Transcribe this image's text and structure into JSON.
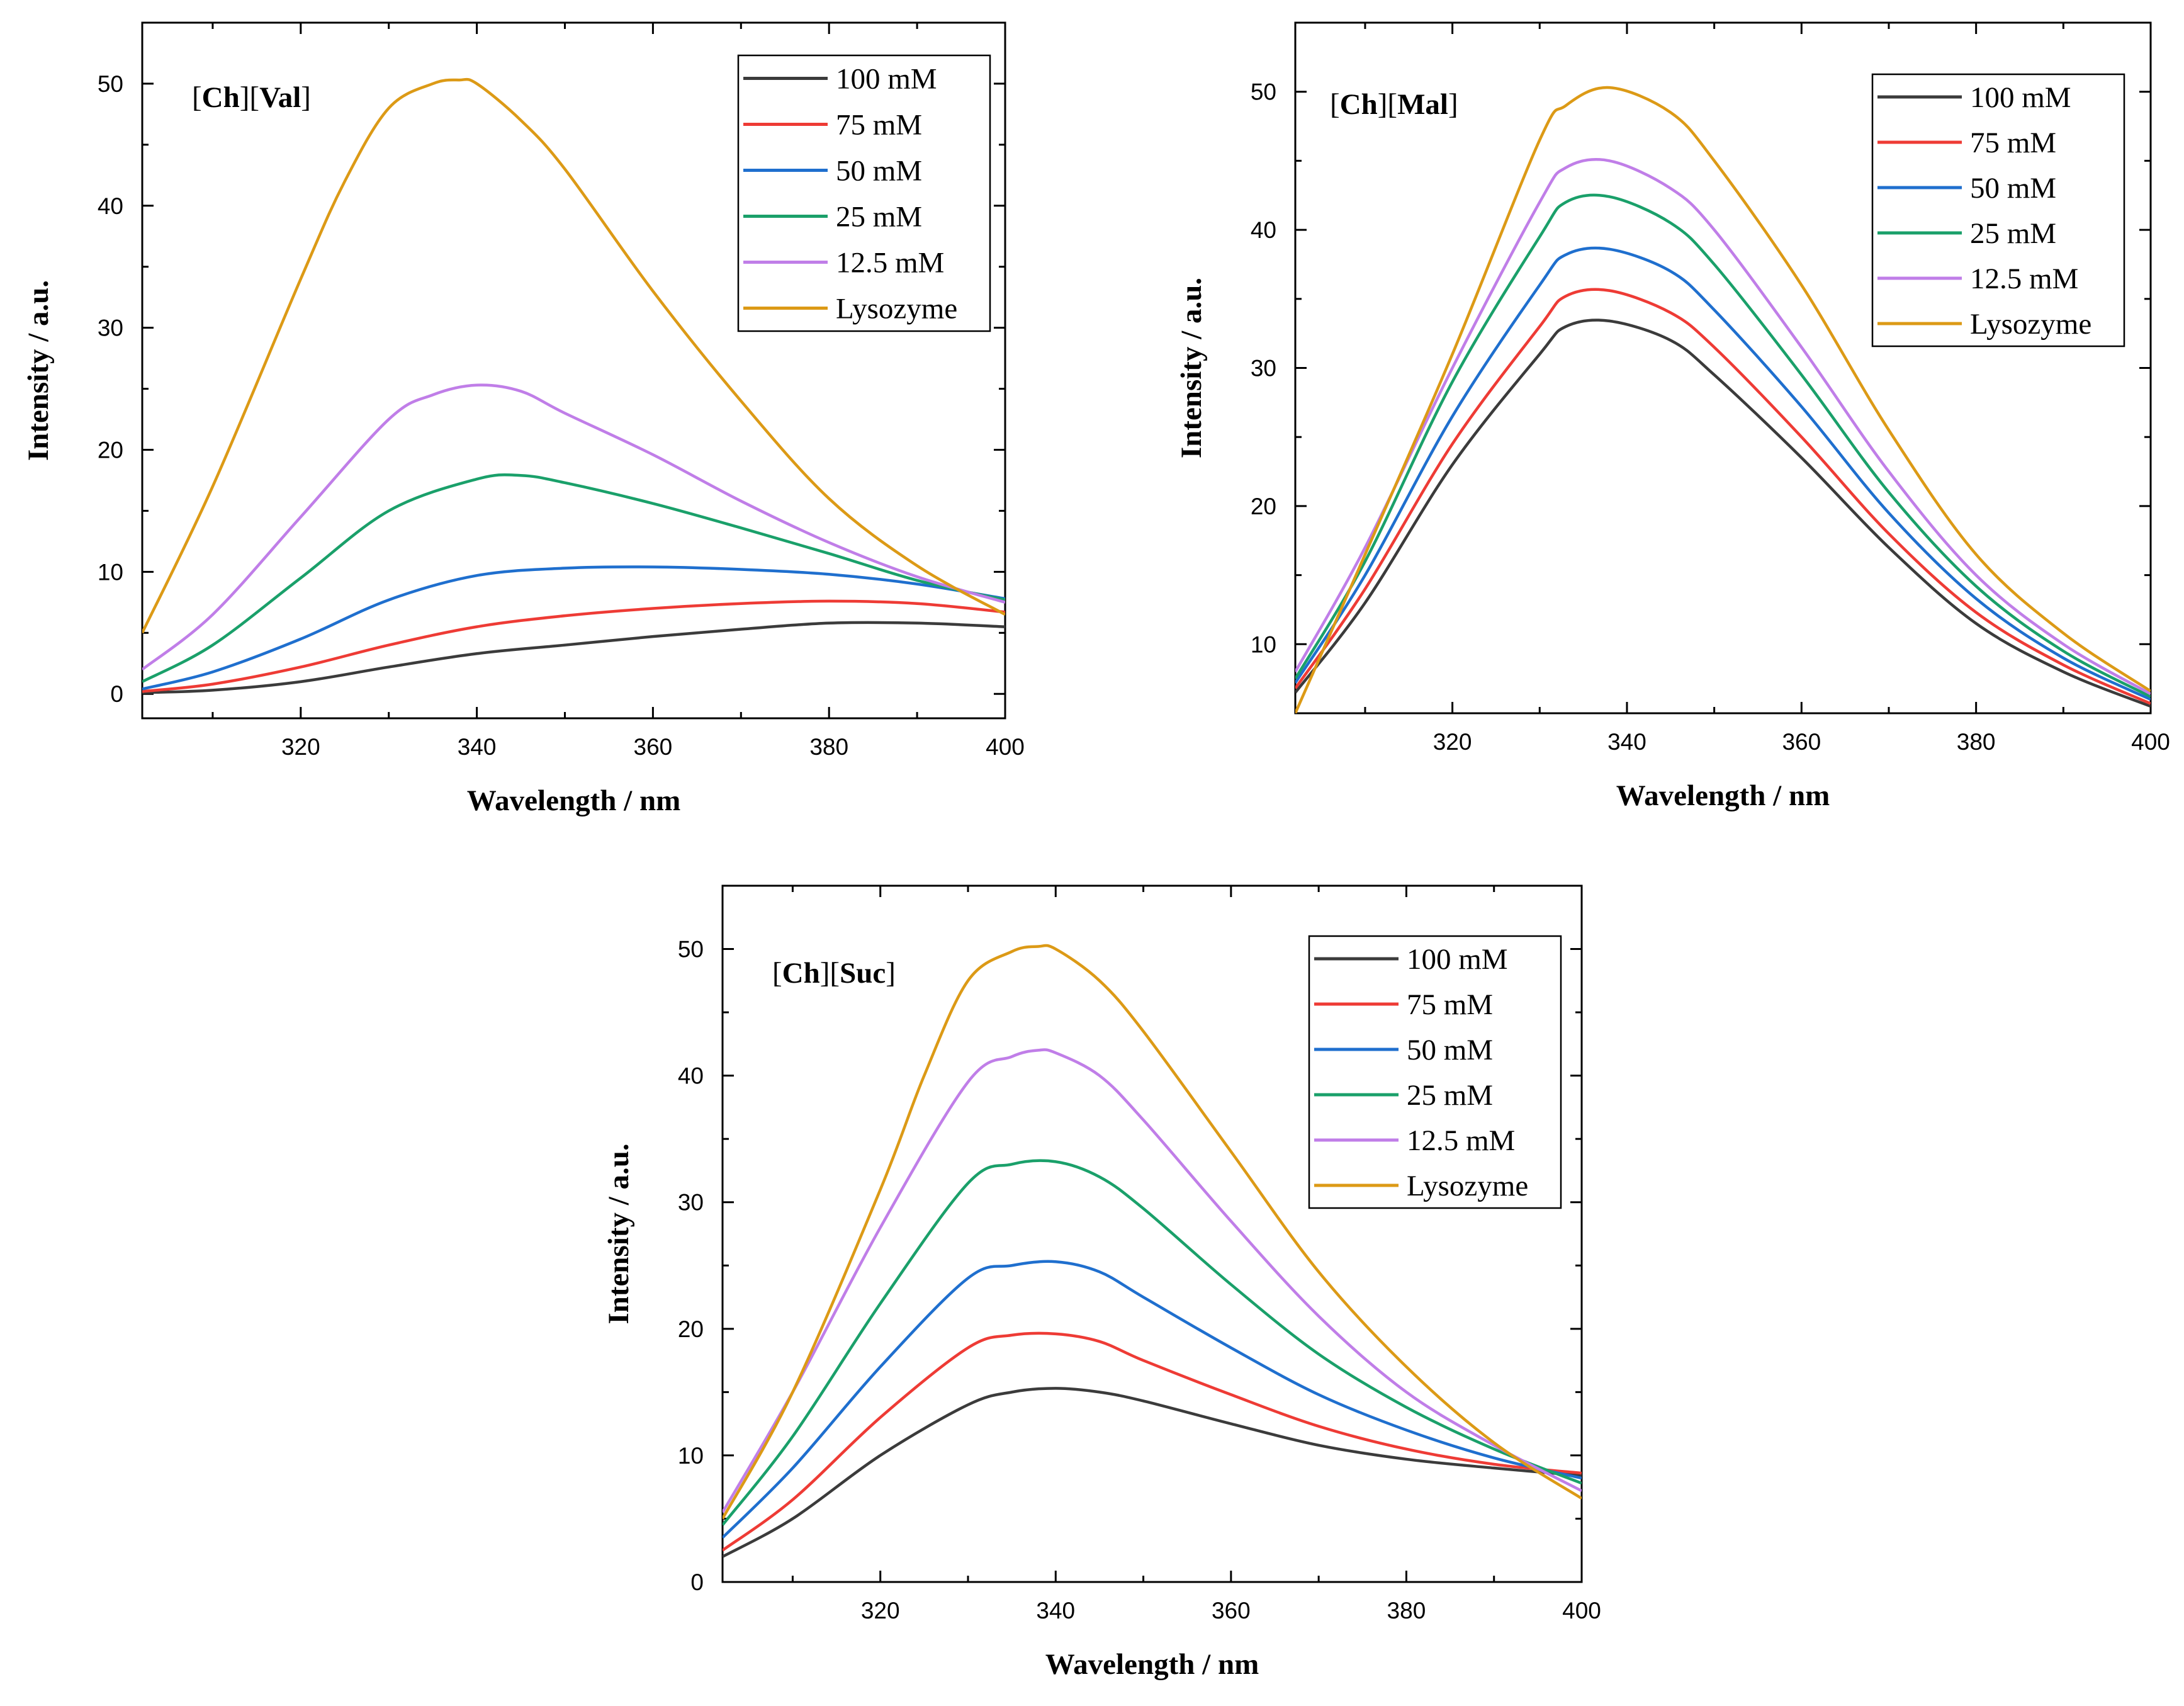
{
  "series_colors": {
    "100 mM": "#3b3b3b",
    "75 mM": "#ee3b35",
    "50 mM": "#1f6fce",
    "25 mM": "#1aa06a",
    "12.5 mM": "#c07ee8",
    "Lysozyme": "#dc9a16"
  },
  "chart_data": [
    {
      "type": "line",
      "title": "[Ch][Val]",
      "title_parts": [
        {
          "text": "[",
          "bold": false
        },
        {
          "text": "Ch",
          "bold": true
        },
        {
          "text": "][",
          "bold": false
        },
        {
          "text": "Val",
          "bold": true
        },
        {
          "text": "]",
          "bold": false
        }
      ],
      "xlabel": "Wavelength / nm",
      "ylabel": "Intensity / a.u.",
      "xlim": [
        302,
        400
      ],
      "ylim": [
        -2,
        55
      ],
      "xticks": [
        320,
        340,
        360,
        380,
        400
      ],
      "yticks": [
        0,
        10,
        20,
        30,
        40,
        50
      ],
      "legend_position": "top-right",
      "series": [
        {
          "name": "100 mM",
          "x": [
            302,
            310,
            320,
            330,
            340,
            350,
            360,
            370,
            380,
            390,
            400
          ],
          "y": [
            0.1,
            0.3,
            1.0,
            2.2,
            3.3,
            4.0,
            4.7,
            5.3,
            5.8,
            5.8,
            5.5
          ]
        },
        {
          "name": "75 mM",
          "x": [
            302,
            310,
            320,
            330,
            340,
            350,
            360,
            370,
            380,
            390,
            400
          ],
          "y": [
            0.2,
            0.8,
            2.2,
            4.0,
            5.5,
            6.4,
            7.0,
            7.4,
            7.6,
            7.4,
            6.7
          ]
        },
        {
          "name": "50 mM",
          "x": [
            302,
            310,
            320,
            330,
            340,
            350,
            360,
            370,
            380,
            390,
            400
          ],
          "y": [
            0.4,
            1.8,
            4.5,
            7.7,
            9.7,
            10.3,
            10.4,
            10.2,
            9.8,
            9.0,
            7.8
          ]
        },
        {
          "name": "25 mM",
          "x": [
            302,
            310,
            320,
            330,
            340,
            345,
            350,
            360,
            370,
            380,
            390,
            400
          ],
          "y": [
            1.0,
            4.0,
            9.5,
            15.0,
            17.6,
            17.9,
            17.3,
            15.6,
            13.6,
            11.5,
            9.3,
            7.7
          ]
        },
        {
          "name": "12.5 mM",
          "x": [
            302,
            310,
            320,
            330,
            335,
            340,
            345,
            350,
            360,
            370,
            380,
            390,
            400
          ],
          "y": [
            2.0,
            6.5,
            14.5,
            22.5,
            24.5,
            25.3,
            24.8,
            23.0,
            19.6,
            15.8,
            12.4,
            9.6,
            7.5
          ]
        },
        {
          "name": "Lysozyme",
          "x": [
            302,
            310,
            320,
            325,
            330,
            335,
            338,
            340,
            345,
            350,
            360,
            370,
            380,
            390,
            400
          ],
          "y": [
            5.0,
            17.0,
            34.0,
            42.0,
            48.0,
            50.0,
            50.3,
            50.0,
            47.0,
            43.0,
            33.0,
            24.0,
            16.0,
            10.5,
            6.5
          ]
        }
      ]
    },
    {
      "type": "line",
      "title": "[Ch][Mal]",
      "title_parts": [
        {
          "text": "[",
          "bold": false
        },
        {
          "text": "Ch",
          "bold": true
        },
        {
          "text": "][",
          "bold": false
        },
        {
          "text": "Mal",
          "bold": true
        },
        {
          "text": "]",
          "bold": false
        }
      ],
      "xlabel": "Wavelength / nm",
      "ylabel": "Intensity / a.u.",
      "xlim": [
        302,
        400
      ],
      "ylim": [
        5,
        55
      ],
      "xticks": [
        320,
        340,
        360,
        380,
        400
      ],
      "yticks": [
        10,
        20,
        30,
        40,
        50
      ],
      "legend_position": "top-right",
      "series": [
        {
          "name": "100 mM",
          "x": [
            302,
            310,
            320,
            330,
            333,
            338,
            345,
            350,
            360,
            370,
            380,
            390,
            400
          ],
          "y": [
            6.5,
            13.0,
            23.0,
            31.0,
            33.0,
            33.4,
            32.0,
            29.5,
            23.5,
            17.0,
            11.5,
            8.0,
            5.5
          ]
        },
        {
          "name": "75 mM",
          "x": [
            302,
            310,
            320,
            330,
            333,
            338,
            345,
            350,
            360,
            370,
            380,
            390,
            400
          ],
          "y": [
            6.8,
            14.0,
            24.5,
            33.0,
            35.2,
            35.6,
            34.0,
            31.5,
            25.0,
            18.0,
            12.3,
            8.5,
            5.7
          ]
        },
        {
          "name": "50 mM",
          "x": [
            302,
            310,
            320,
            330,
            333,
            338,
            345,
            350,
            360,
            370,
            380,
            390,
            400
          ],
          "y": [
            7.2,
            15.0,
            26.5,
            36.0,
            38.2,
            38.6,
            37.0,
            34.2,
            27.2,
            19.5,
            13.3,
            9.0,
            6.0
          ]
        },
        {
          "name": "25 mM",
          "x": [
            302,
            310,
            320,
            330,
            333,
            338,
            345,
            350,
            360,
            370,
            380,
            390,
            400
          ],
          "y": [
            7.5,
            16.0,
            29.0,
            39.5,
            42.0,
            42.4,
            40.5,
            37.5,
            29.5,
            21.0,
            14.2,
            9.5,
            6.2
          ]
        },
        {
          "name": "12.5 mM",
          "x": [
            302,
            310,
            320,
            330,
            333,
            338,
            345,
            350,
            360,
            370,
            380,
            390,
            400
          ],
          "y": [
            8.0,
            17.0,
            30.0,
            42.0,
            44.5,
            45.0,
            43.0,
            40.0,
            31.5,
            22.5,
            15.0,
            10.0,
            6.4
          ]
        },
        {
          "name": "Lysozyme",
          "x": [
            302,
            310,
            320,
            330,
            333,
            338,
            345,
            350,
            360,
            370,
            380,
            390,
            400
          ],
          "y": [
            5.0,
            16.5,
            31.0,
            46.5,
            49.0,
            50.3,
            48.5,
            45.0,
            36.0,
            25.5,
            16.5,
            10.8,
            6.6
          ]
        }
      ]
    },
    {
      "type": "line",
      "title": "[Ch][Suc]",
      "title_parts": [
        {
          "text": "[",
          "bold": false
        },
        {
          "text": "Ch",
          "bold": true
        },
        {
          "text": "][",
          "bold": false
        },
        {
          "text": "Suc",
          "bold": true
        },
        {
          "text": "]",
          "bold": false
        }
      ],
      "xlabel": "Wavelength / nm",
      "ylabel": "Intensity / a.u.",
      "xlim": [
        302,
        400
      ],
      "ylim": [
        0,
        55
      ],
      "xticks": [
        320,
        340,
        360,
        380,
        400
      ],
      "yticks": [
        0,
        10,
        20,
        30,
        40,
        50
      ],
      "legend_position": "top-right",
      "series": [
        {
          "name": "100 mM",
          "x": [
            302,
            310,
            320,
            330,
            335,
            340,
            345,
            350,
            360,
            370,
            380,
            390,
            400
          ],
          "y": [
            2.0,
            5.0,
            10.0,
            14.0,
            15.0,
            15.3,
            15.0,
            14.3,
            12.5,
            10.8,
            9.7,
            9.0,
            8.4
          ]
        },
        {
          "name": "75 mM",
          "x": [
            302,
            310,
            320,
            330,
            335,
            340,
            345,
            350,
            360,
            370,
            380,
            390,
            400
          ],
          "y": [
            2.5,
            6.5,
            13.0,
            18.5,
            19.5,
            19.6,
            19.0,
            17.5,
            14.8,
            12.3,
            10.5,
            9.3,
            8.6
          ]
        },
        {
          "name": "50 mM",
          "x": [
            302,
            310,
            320,
            330,
            335,
            340,
            345,
            350,
            360,
            370,
            380,
            390,
            400
          ],
          "y": [
            3.5,
            9.0,
            17.0,
            24.0,
            25.0,
            25.3,
            24.5,
            22.5,
            18.5,
            14.8,
            12.0,
            9.8,
            8.2
          ]
        },
        {
          "name": "25 mM",
          "x": [
            302,
            310,
            320,
            330,
            335,
            340,
            345,
            350,
            360,
            370,
            380,
            390,
            400
          ],
          "y": [
            4.5,
            11.5,
            22.0,
            31.5,
            33.0,
            33.2,
            32.0,
            29.5,
            23.5,
            18.0,
            13.8,
            10.5,
            7.8
          ]
        },
        {
          "name": "12.5 mM",
          "x": [
            302,
            310,
            320,
            330,
            335,
            338,
            340,
            345,
            350,
            360,
            370,
            380,
            390,
            400
          ],
          "y": [
            5.5,
            15.0,
            28.0,
            39.5,
            41.5,
            42.0,
            41.8,
            40.0,
            36.5,
            28.5,
            21.0,
            15.0,
            10.8,
            7.2
          ]
        },
        {
          "name": "Lysozyme",
          "x": [
            302,
            310,
            320,
            325,
            330,
            335,
            338,
            340,
            345,
            350,
            360,
            370,
            380,
            390,
            400
          ],
          "y": [
            5.0,
            15.0,
            31.0,
            40.0,
            47.5,
            49.8,
            50.2,
            50.0,
            47.5,
            43.5,
            34.0,
            24.5,
            17.0,
            11.0,
            6.6
          ]
        }
      ]
    }
  ]
}
